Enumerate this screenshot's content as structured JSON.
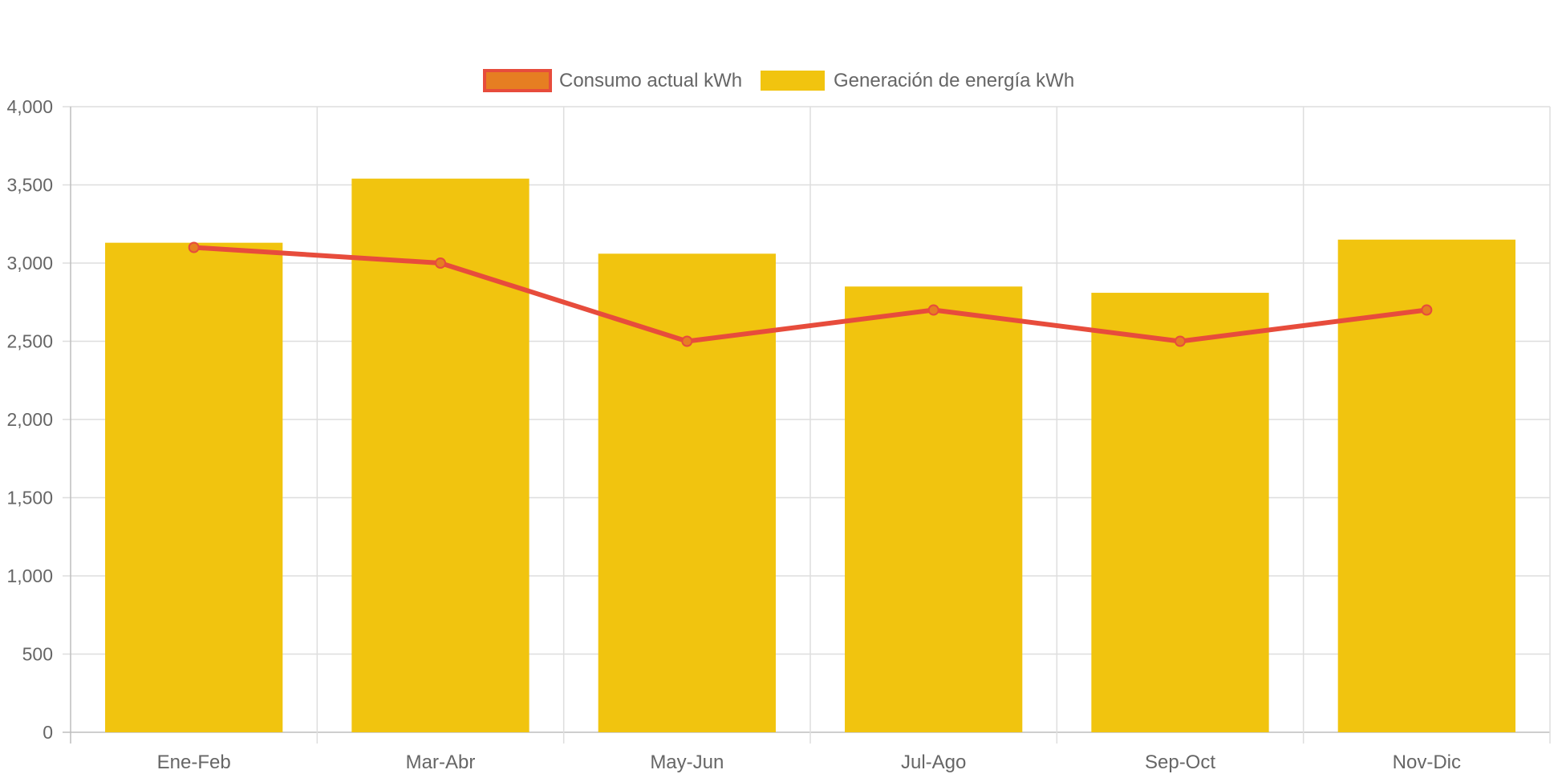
{
  "chart_data": {
    "type": "bar",
    "categories": [
      "Ene-Feb",
      "Mar-Abr",
      "May-Jun",
      "Jul-Ago",
      "Sep-Oct",
      "Nov-Dic"
    ],
    "series": [
      {
        "name": "Consumo actual kWh",
        "type": "line",
        "values": [
          3100,
          3000,
          2500,
          2700,
          2500,
          2700
        ],
        "color": "#e74c3c",
        "point_fill": "#e67e22"
      },
      {
        "name": "Generación de energía kWh",
        "type": "bar",
        "values": [
          3130,
          3540,
          3060,
          2850,
          2810,
          3150
        ],
        "color": "#f1c40f"
      }
    ],
    "ylim": [
      0,
      4000
    ],
    "yticks": [
      0,
      500,
      1000,
      1500,
      2000,
      2500,
      3000,
      3500,
      4000
    ],
    "ytick_labels": [
      "0",
      "500",
      "1,000",
      "1,500",
      "2,000",
      "2,500",
      "3,000",
      "3,500",
      "4,000"
    ],
    "grid": true,
    "legend_position": "top-center"
  }
}
